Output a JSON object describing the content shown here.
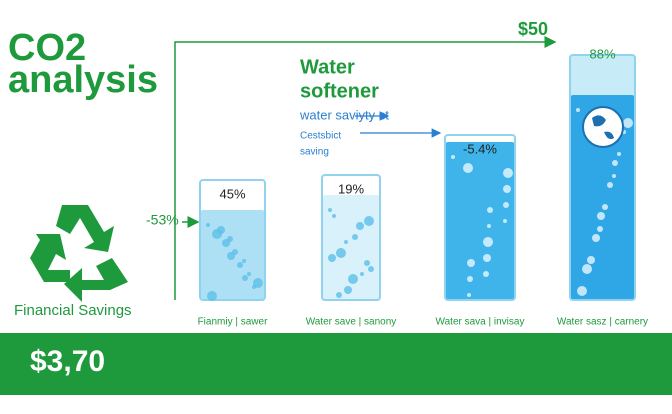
{
  "header": {
    "title": [
      "CO2",
      "analysis"
    ]
  },
  "annotations": {
    "top": "$50",
    "left": "-53%",
    "heading": [
      "Water",
      "softener"
    ],
    "subheading": "water saviyty st",
    "note": [
      "Cestsbict",
      "saving"
    ]
  },
  "beakers": [
    {
      "percent": "45%",
      "label": "Fianmiy | sawer"
    },
    {
      "percent": "19%",
      "label": "Water save | sanony"
    },
    {
      "percent": "-5.4%",
      "label": "Water sava | invisay"
    },
    {
      "percent": "88%",
      "label": "Water sasz | carnery"
    }
  ],
  "footer": {
    "label": "Financial Savings",
    "amount": "$3,70"
  }
}
